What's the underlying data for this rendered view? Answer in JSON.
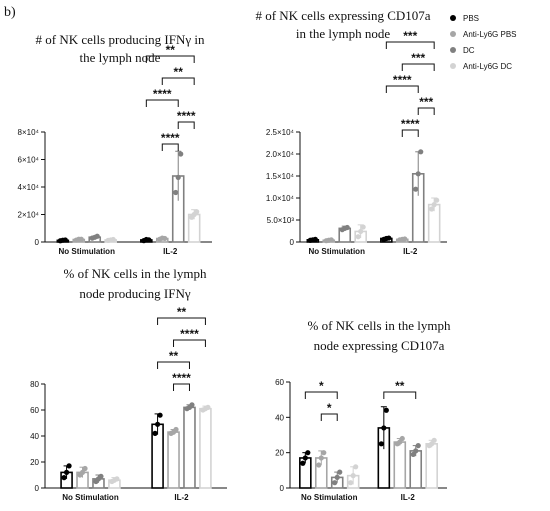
{
  "panel_label": "b)",
  "legend": [
    {
      "label": "PBS",
      "color": "#000000"
    },
    {
      "label": "Anti-Ly6G PBS",
      "color": "#a6a6a6"
    },
    {
      "label": "DC",
      "color": "#808080"
    },
    {
      "label": "Anti-Ly6G DC",
      "color": "#d3d3d3"
    }
  ],
  "chart_data": [
    {
      "type": "bar",
      "title": [
        "# of NK cells producing IFNγ in",
        "the lymph node"
      ],
      "categories": [
        "No Stimulation",
        "IL-2"
      ],
      "series_names": [
        "PBS",
        "Anti-Ly6G PBS",
        "DC",
        "Anti-Ly6G DC"
      ],
      "ylim": [
        0,
        80000
      ],
      "ytick_values": [
        0,
        20000,
        40000,
        60000,
        80000
      ],
      "ytick_labels": [
        "0",
        "2×10⁴",
        "4×10⁴",
        "6×10⁴",
        "8×10⁴"
      ],
      "values": [
        [
          1200,
          1800,
          3500,
          1500
        ],
        [
          1500,
          2500,
          48000,
          20000
        ]
      ],
      "errors": [
        [
          300,
          500,
          800,
          400
        ],
        [
          400,
          600,
          18000,
          3500
        ]
      ],
      "points": [
        [
          [
            900,
            1300,
            1500
          ],
          [
            1400,
            2000,
            2000
          ],
          [
            2800,
            3400,
            4200
          ],
          [
            1200,
            1500,
            1800
          ]
        ],
        [
          [
            1000,
            1800,
            1600
          ],
          [
            2000,
            2800,
            2600
          ],
          [
            36000,
            47000,
            64000
          ],
          [
            18000,
            20000,
            22000
          ]
        ]
      ],
      "significance": [
        {
          "label": "**",
          "from": 0,
          "to": 3
        },
        {
          "label": "**",
          "from": 1,
          "to": 3
        },
        {
          "label": "****",
          "from": 0,
          "to": 2
        },
        {
          "label": "****",
          "from": 2,
          "to": 3
        },
        {
          "label": "****",
          "from": 1,
          "to": 2
        }
      ]
    },
    {
      "type": "bar",
      "title": [
        "# of NK cells expressing CD107a",
        "in the lymph node"
      ],
      "categories": [
        "No Stimulation",
        "IL-2"
      ],
      "series_names": [
        "PBS",
        "Anti-Ly6G PBS",
        "DC",
        "Anti-Ly6G DC"
      ],
      "ylim": [
        0,
        25000
      ],
      "ytick_values": [
        0,
        5000,
        10000,
        15000,
        20000,
        25000
      ],
      "ytick_labels": [
        "0",
        "5.0×10³",
        "1.0×10⁴",
        "1.5×10⁴",
        "2.0×10⁴",
        "2.5×10⁴"
      ],
      "values": [
        [
          500,
          400,
          3100,
          2400
        ],
        [
          800,
          600,
          15500,
          8500
        ]
      ],
      "errors": [
        [
          150,
          150,
          500,
          1500
        ],
        [
          200,
          200,
          5000,
          1500
        ]
      ],
      "points": [
        [
          [
            400,
            500,
            600
          ],
          [
            300,
            400,
            500
          ],
          [
            2800,
            3100,
            3300
          ],
          [
            1200,
            2400,
            3400
          ]
        ],
        [
          [
            600,
            800,
            900
          ],
          [
            500,
            600,
            700
          ],
          [
            12000,
            15500,
            20500
          ],
          [
            7500,
            8500,
            9500
          ]
        ]
      ],
      "significance": [
        {
          "label": "***",
          "from": 0,
          "to": 3
        },
        {
          "label": "***",
          "from": 1,
          "to": 3
        },
        {
          "label": "****",
          "from": 0,
          "to": 2
        },
        {
          "label": "***",
          "from": 2,
          "to": 3
        },
        {
          "label": "****",
          "from": 1,
          "to": 2
        }
      ]
    },
    {
      "type": "bar",
      "title": [
        "% of NK cells in the lymph",
        "node producing IFNγ"
      ],
      "categories": [
        "No Stimulation",
        "IL-2"
      ],
      "series_names": [
        "PBS",
        "Anti-Ly6G PBS",
        "DC",
        "Anti-Ly6G DC"
      ],
      "ylim": [
        0,
        80
      ],
      "ytick_values": [
        0,
        20,
        40,
        60,
        80
      ],
      "ytick_labels": [
        "0",
        "20",
        "40",
        "60",
        "80"
      ],
      "values": [
        [
          12,
          12,
          7,
          6
        ],
        [
          49,
          43,
          62,
          61
        ]
      ],
      "errors": [
        [
          5,
          4,
          3,
          2
        ],
        [
          8,
          2,
          2,
          2
        ]
      ],
      "points": [
        [
          [
            8,
            12,
            17
          ],
          [
            10,
            12,
            15
          ],
          [
            5,
            7,
            9
          ],
          [
            5,
            6,
            7
          ]
        ],
        [
          [
            42,
            49,
            56
          ],
          [
            42,
            43,
            45
          ],
          [
            61,
            62,
            64
          ],
          [
            60,
            61,
            62
          ]
        ]
      ],
      "significance": [
        {
          "label": "**",
          "from": 0,
          "to": 3
        },
        {
          "label": "****",
          "from": 1,
          "to": 3
        },
        {
          "label": "**",
          "from": 0,
          "to": 2
        },
        {
          "label": "****",
          "from": 1,
          "to": 2
        }
      ]
    },
    {
      "type": "bar",
      "title": [
        "% of NK cells in the lymph",
        "node expressing CD107a"
      ],
      "categories": [
        "No Stimulation",
        "IL-2"
      ],
      "series_names": [
        "PBS",
        "Anti-Ly6G PBS",
        "DC",
        "Anti-Ly6G DC"
      ],
      "ylim": [
        0,
        60
      ],
      "ytick_values": [
        0,
        20,
        40,
        60
      ],
      "ytick_labels": [
        "0",
        "20",
        "40",
        "60"
      ],
      "values": [
        [
          17,
          17,
          6,
          7
        ],
        [
          34,
          26,
          21,
          25
        ]
      ],
      "errors": [
        [
          3,
          4,
          3,
          5
        ],
        [
          12,
          2,
          3,
          2
        ]
      ],
      "points": [
        [
          [
            14,
            17,
            20
          ],
          [
            13,
            17,
            20
          ],
          [
            3,
            6,
            9
          ],
          [
            3,
            7,
            12
          ]
        ],
        [
          [
            25,
            34,
            44
          ],
          [
            25,
            26,
            28
          ],
          [
            19,
            21,
            24
          ],
          [
            24,
            25,
            27
          ]
        ]
      ],
      "significance_groups": [
        0,
        0,
        1
      ],
      "significance": [
        {
          "label": "*",
          "from": 0,
          "to": 2
        },
        {
          "label": "*",
          "from": 1,
          "to": 2
        },
        {
          "label": "**",
          "from": 0,
          "to": 2
        }
      ]
    }
  ]
}
